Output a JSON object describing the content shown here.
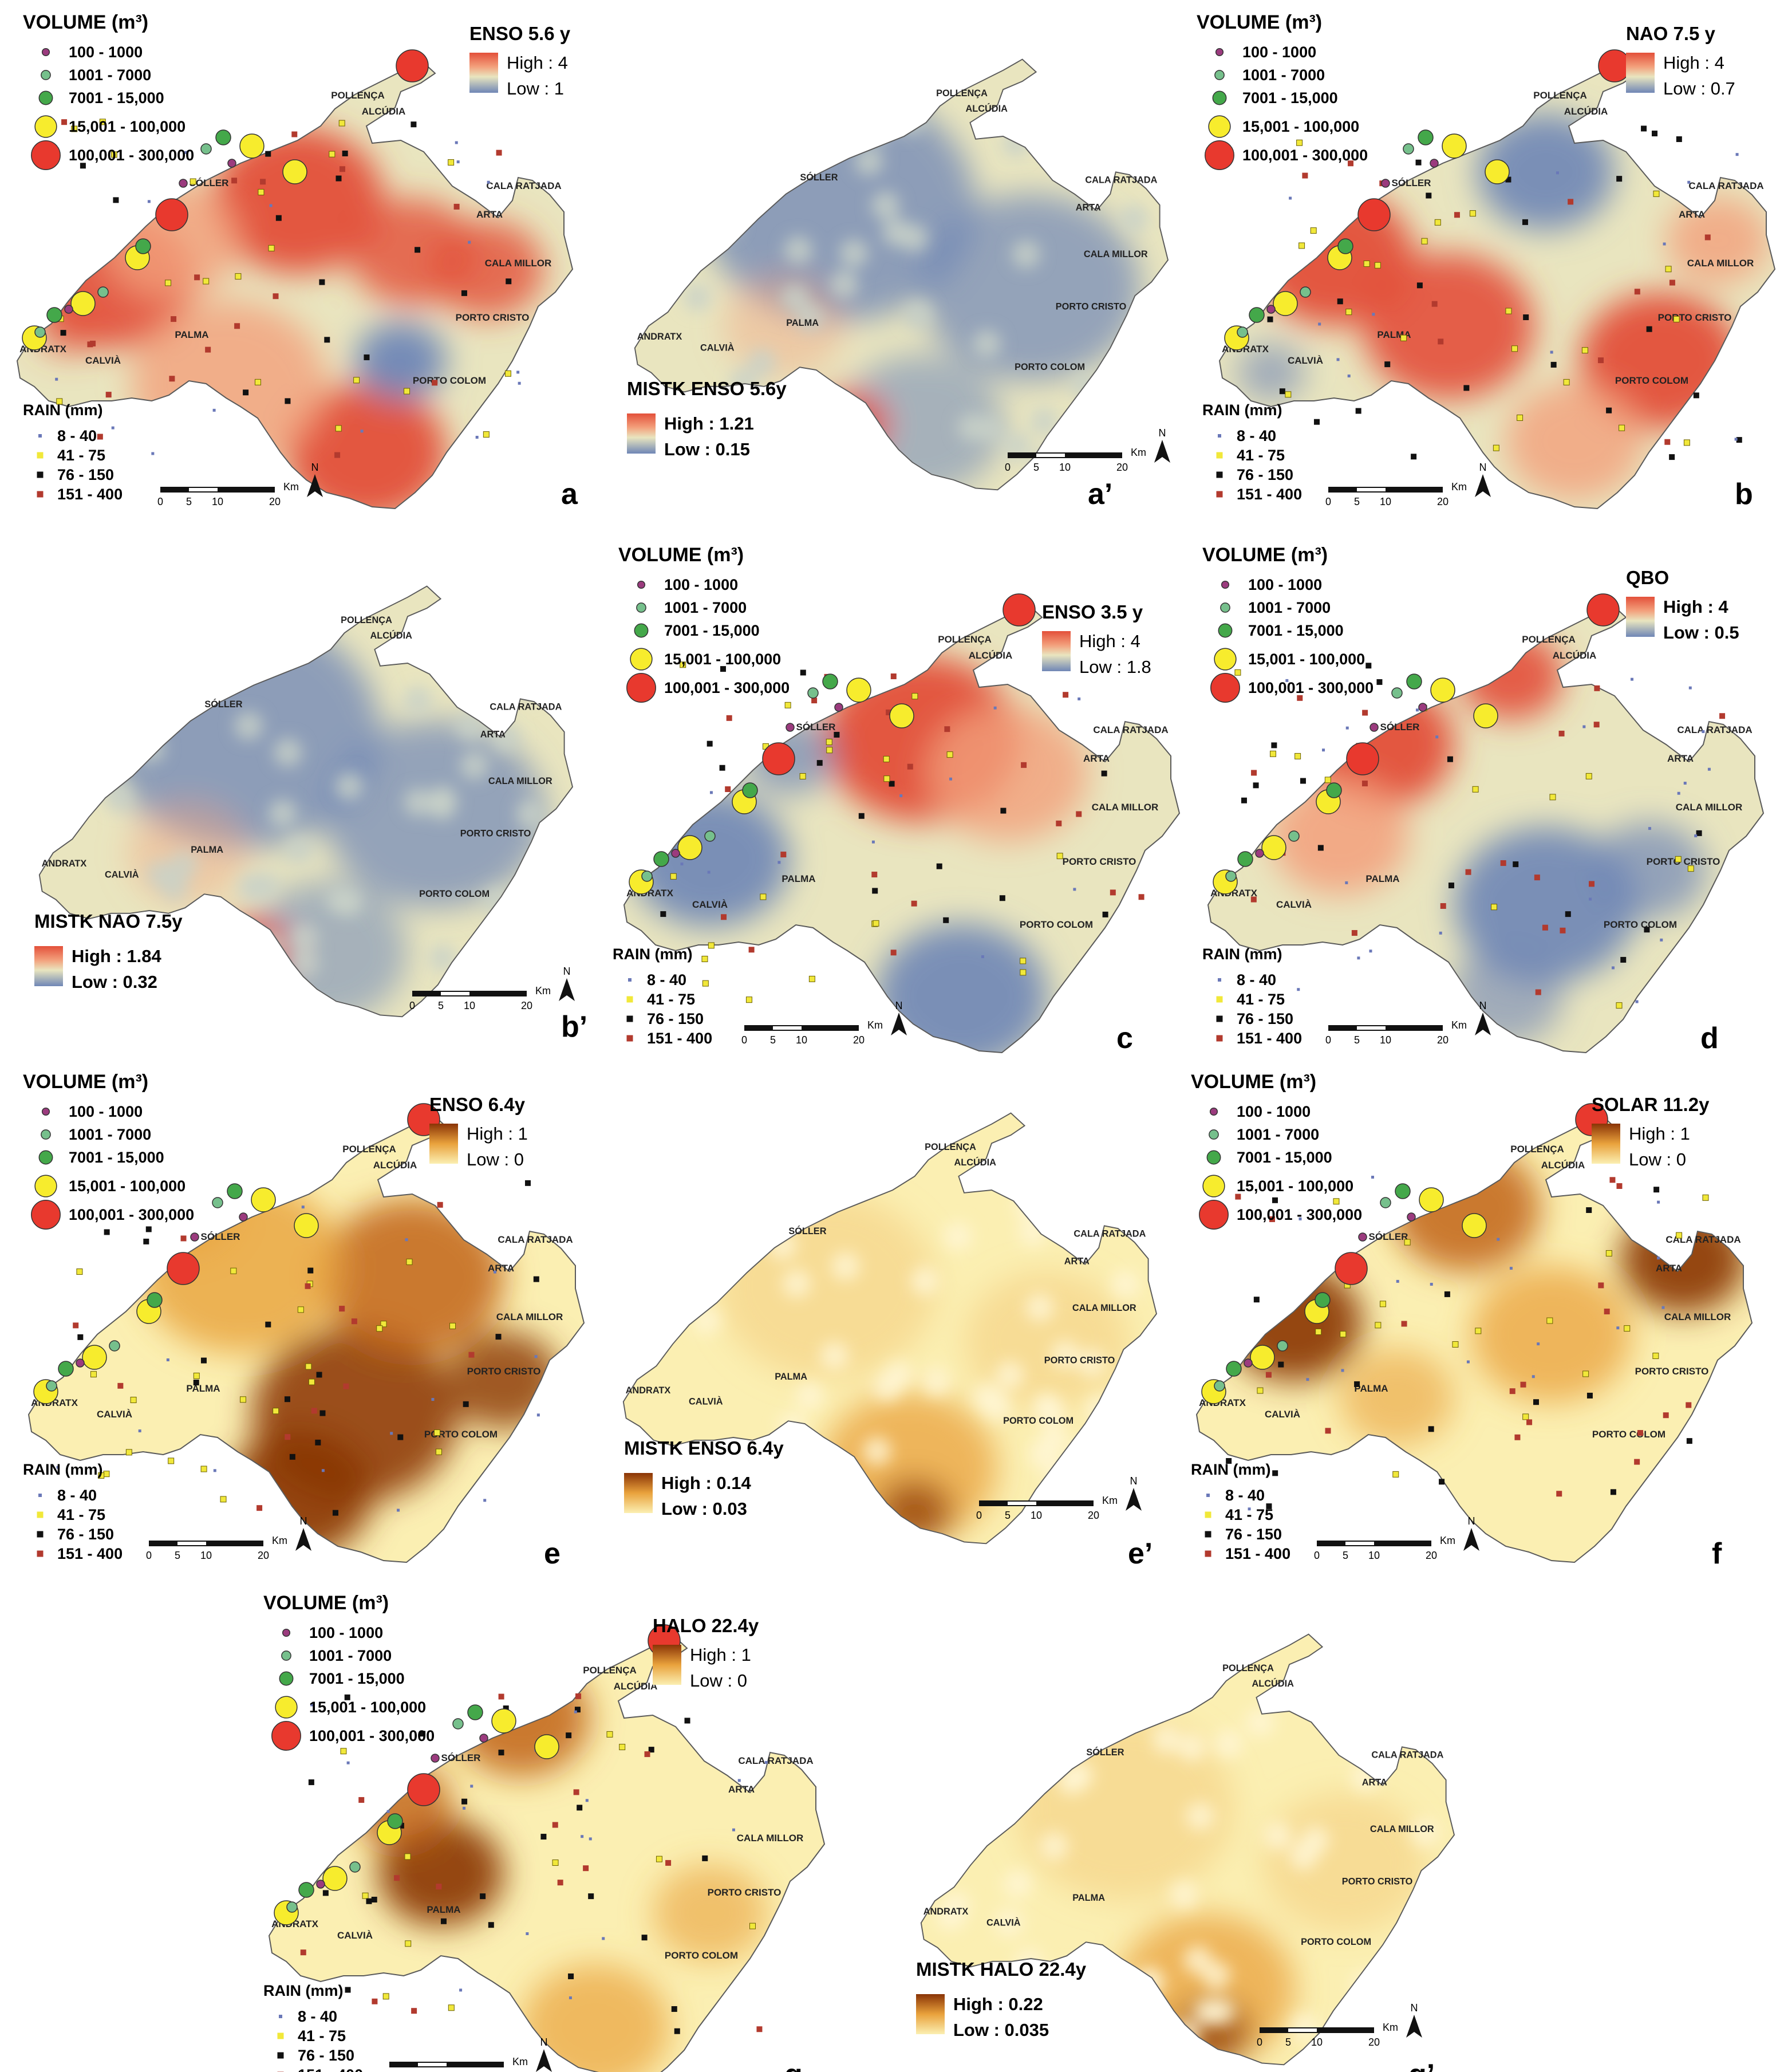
{
  "legends": {
    "volume_title": "VOLUME (m³)",
    "volume_classes": [
      "100 - 1000",
      "1001 - 7000",
      "7001 - 15,000",
      "15,001 - 100,000",
      "100,001 - 300,000"
    ],
    "rain_title": "RAIN (mm)",
    "rain_classes": [
      "8 - 40",
      "41 - 75",
      "76 - 150",
      "151 - 400"
    ],
    "high_prefix": "High : ",
    "low_prefix": "Low : "
  },
  "scale_bar": {
    "ticks": [
      "0",
      "5",
      "10",
      "20"
    ],
    "unit": "Km"
  },
  "north_label": "N",
  "towns": [
    "POLLENÇA",
    "ALCÚDIA",
    "SÓLLER",
    "CALA RATJADA",
    "ARTA",
    "CALA MILLOR",
    "PORTO CRISTO",
    "PORTO COLOM",
    "PALMA",
    "ANDRATX",
    "CALVIÀ"
  ],
  "panels": [
    {
      "id": "a",
      "label": "a",
      "title": "ENSO 5.6 y",
      "high": "4",
      "low": "1",
      "kind": "main",
      "palette": "redblue",
      "pattern": "a"
    },
    {
      "id": "a2",
      "label": "a’",
      "title": "MISTK ENSO 5.6y",
      "high": "1.21",
      "low": "0.15",
      "kind": "mistk",
      "palette": "redblue",
      "pattern": "blue"
    },
    {
      "id": "b",
      "label": "b",
      "title": "NAO 7.5 y",
      "high": "4",
      "low": "0.7",
      "kind": "main",
      "palette": "redblue",
      "pattern": "b"
    },
    {
      "id": "b2",
      "label": "b’",
      "title": "MISTK NAO 7.5y",
      "high": "1.84",
      "low": "0.32",
      "kind": "mistk",
      "palette": "redblue",
      "pattern": "blue"
    },
    {
      "id": "c",
      "label": "c",
      "title": "ENSO 3.5 y",
      "high": "4",
      "low": "1.8",
      "kind": "main",
      "palette": "redblue",
      "pattern": "c"
    },
    {
      "id": "d",
      "label": "d",
      "title": "QBO",
      "high": "4",
      "low": "0.5",
      "kind": "main",
      "palette": "redblue",
      "pattern": "d"
    },
    {
      "id": "e",
      "label": "e",
      "title": "ENSO 6.4y",
      "high": "1",
      "low": "0",
      "kind": "main",
      "palette": "orange",
      "pattern": "e"
    },
    {
      "id": "e2",
      "label": "e’",
      "title": "MISTK ENSO 6.4y",
      "high": "0.14",
      "low": "0.03",
      "kind": "mistk",
      "palette": "orange",
      "pattern": "light"
    },
    {
      "id": "f",
      "label": "f",
      "title": "SOLAR 11.2y",
      "high": "1",
      "low": "0",
      "kind": "main",
      "palette": "orange",
      "pattern": "f"
    },
    {
      "id": "g",
      "label": "g",
      "title": "HALO 22.4y",
      "high": "1",
      "low": "0",
      "kind": "main",
      "palette": "orange",
      "pattern": "g"
    },
    {
      "id": "g2",
      "label": "g’",
      "title": "MISTK HALO 22.4y",
      "high": "0.22",
      "low": "0.035",
      "kind": "mistk",
      "palette": "orange",
      "pattern": "light"
    }
  ],
  "colors": {
    "red_high": "#e3503a",
    "red_mid": "#f3a07c",
    "cream": "#e9e5bf",
    "blue_low": "#6f86b6",
    "orange_high": "#8a3406",
    "orange_mid": "#e9a23c",
    "yellow_low": "#fbefb2",
    "vol_class_1": "#9b3b7e",
    "vol_class_2": "#76c08c",
    "vol_class_3": "#44a84a",
    "vol_class_4": "#f7ec2d",
    "vol_class_5": "#e8392e",
    "rain_class_1": "#6a78b8",
    "rain_class_2": "#f1e83a",
    "rain_class_3": "#111111",
    "rain_class_4": "#b23a2e"
  }
}
